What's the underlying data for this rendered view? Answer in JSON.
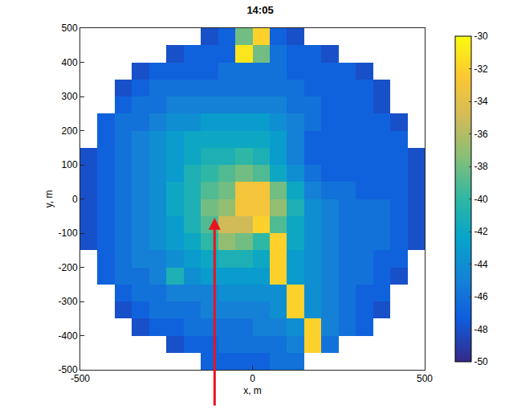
{
  "chart_data": {
    "type": "heatmap",
    "title": "14:05",
    "x_label": "x, m",
    "y_label": "y, m",
    "x": [
      -475,
      -425,
      -375,
      -325,
      -275,
      -225,
      -175,
      -125,
      -75,
      -25,
      25,
      75,
      125,
      175,
      225,
      275,
      325,
      375,
      425,
      475
    ],
    "y": [
      -475,
      -425,
      -375,
      -325,
      -275,
      -225,
      -175,
      -125,
      -75,
      -25,
      25,
      75,
      125,
      175,
      225,
      275,
      325,
      375,
      425,
      475
    ],
    "z": [
      [
        null,
        null,
        null,
        null,
        null,
        null,
        null,
        -47,
        -47,
        -47,
        -47,
        -46,
        -46,
        null,
        null,
        null,
        null,
        null,
        null,
        null
      ],
      [
        null,
        null,
        null,
        null,
        null,
        -48,
        -47,
        -47,
        -46,
        -46,
        -46,
        -46,
        -45,
        -32,
        -46,
        null,
        null,
        null,
        null,
        null
      ],
      [
        null,
        null,
        null,
        -48,
        -47,
        -47,
        -46,
        -46,
        -46,
        -46,
        -45,
        -45,
        -44,
        -32,
        -45,
        -46,
        -47,
        null,
        null,
        null
      ],
      [
        null,
        null,
        -48,
        -47,
        -46,
        -46,
        -46,
        -45,
        -45,
        -45,
        -45,
        -44,
        -32,
        -44,
        -45,
        -46,
        -47,
        -48,
        null,
        null
      ],
      [
        null,
        null,
        -47,
        -46,
        -46,
        -45,
        -45,
        -45,
        -44,
        -44,
        -44,
        -44,
        -32,
        -44,
        -45,
        -46,
        -47,
        -47,
        null,
        null
      ],
      [
        null,
        -47,
        -46,
        -46,
        -45,
        -41,
        -44,
        -43,
        -43,
        -43,
        -43,
        -32,
        -43,
        -44,
        -45,
        -46,
        -46,
        -47,
        -48,
        null
      ],
      [
        null,
        -47,
        -46,
        -45,
        -45,
        -44,
        -43,
        -42,
        -41,
        -41,
        -42,
        -32,
        -43,
        -44,
        -45,
        -46,
        -46,
        -47,
        -47,
        null
      ],
      [
        -48,
        -47,
        -46,
        -45,
        -44,
        -43,
        -42,
        -40,
        -37,
        -38,
        -40,
        -32,
        -42,
        -44,
        -45,
        -46,
        -46,
        -46,
        -47,
        -48
      ],
      [
        -48,
        -47,
        -46,
        -45,
        -44,
        -43,
        -41,
        -39,
        -35,
        -35,
        -32,
        -39,
        -42,
        -44,
        -45,
        -46,
        -46,
        -46,
        -47,
        -48
      ],
      [
        -48,
        -47,
        -46,
        -45,
        -44,
        -42,
        -41,
        -38,
        -37,
        -33,
        -33,
        -37,
        -41,
        -44,
        -45,
        -46,
        -46,
        -46,
        -47,
        -48
      ],
      [
        -48,
        -47,
        -46,
        -45,
        -44,
        -42,
        -41,
        -39,
        -38,
        -33,
        -33,
        -38,
        -42,
        -45,
        -46,
        -46,
        -47,
        -47,
        -47,
        -48
      ],
      [
        -48,
        -47,
        -46,
        -45,
        -44,
        -43,
        -41,
        -40,
        -39,
        -38,
        -39,
        -42,
        -44,
        -46,
        -47,
        -47,
        -47,
        -47,
        -47,
        -48
      ],
      [
        -48,
        -47,
        -46,
        -45,
        -44,
        -43,
        -42,
        -41,
        -41,
        -40,
        -41,
        -43,
        -45,
        -47,
        -47,
        -47,
        -47,
        -47,
        -47,
        -48
      ],
      [
        null,
        -47,
        -46,
        -45,
        -44,
        -43,
        -42,
        -42,
        -42,
        -42,
        -42,
        -43,
        -45,
        -47,
        -47,
        -47,
        -47,
        -47,
        -47,
        null
      ],
      [
        null,
        -47,
        -46,
        -46,
        -45,
        -44,
        -44,
        -43,
        -43,
        -43,
        -43,
        -44,
        -45,
        -46,
        -47,
        -47,
        -47,
        -47,
        -48,
        null
      ],
      [
        null,
        null,
        -47,
        -46,
        -46,
        -45,
        -45,
        -45,
        -45,
        -45,
        -45,
        -45,
        -46,
        -46,
        -47,
        -47,
        -47,
        -48,
        null,
        null
      ],
      [
        null,
        null,
        -48,
        -47,
        -46,
        -46,
        -46,
        -46,
        -46,
        -46,
        -46,
        -46,
        -46,
        -47,
        -47,
        -47,
        -47,
        -48,
        null,
        null
      ],
      [
        null,
        null,
        null,
        -48,
        -47,
        -47,
        -47,
        -47,
        -46,
        -46,
        -46,
        -46,
        -47,
        -47,
        -47,
        -47,
        -48,
        null,
        null,
        null
      ],
      [
        null,
        null,
        null,
        null,
        null,
        -48,
        -47,
        -47,
        -47,
        -31,
        -38,
        -46,
        -47,
        -47,
        -48,
        null,
        null,
        null,
        null,
        null
      ],
      [
        null,
        null,
        null,
        null,
        null,
        null,
        null,
        -48,
        -47,
        -38,
        -32,
        -47,
        -48,
        null,
        null,
        null,
        null,
        null,
        null,
        null
      ]
    ],
    "xlim": [
      -500,
      500
    ],
    "ylim": [
      -500,
      500
    ],
    "xticks": [
      -500,
      0,
      500
    ],
    "yticks": [
      -500,
      -400,
      -300,
      -200,
      -100,
      0,
      100,
      200,
      300,
      400,
      500
    ],
    "zlim": [
      -50,
      -30
    ],
    "zticks": [
      -30,
      -32,
      -34,
      -36,
      -38,
      -40,
      -42,
      -44,
      -46,
      -48,
      -50
    ],
    "grid": false
  }
}
